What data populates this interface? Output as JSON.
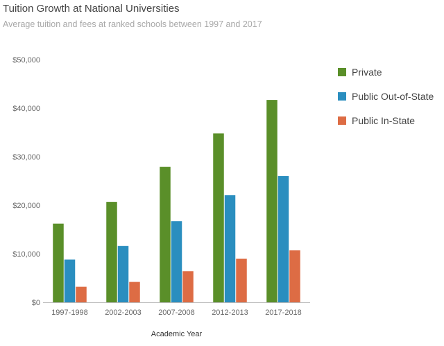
{
  "chart_data": {
    "type": "bar",
    "title": "Tuition Growth at National Universities",
    "subtitle": "Average tuition and fees at ranked schools between 1997 and 2017",
    "xlabel": "Academic Year",
    "ylabel": "",
    "ylim": [
      0,
      50000
    ],
    "yticks": [
      "$0",
      "$10,000",
      "$20,000",
      "$30,000",
      "$40,000",
      "$50,000"
    ],
    "ytick_values": [
      0,
      10000,
      20000,
      30000,
      40000,
      50000
    ],
    "grid": false,
    "legend_position": "right",
    "categories": [
      "1997-1998",
      "2002-2003",
      "2007-2008",
      "2012-2013",
      "2017-2018"
    ],
    "series": [
      {
        "name": "Private",
        "color": "#5a8f29",
        "values": [
          16200,
          20700,
          27900,
          34800,
          41700
        ]
      },
      {
        "name": "Public Out-of-State",
        "color": "#2a8ebf",
        "values": [
          8800,
          11600,
          16700,
          22100,
          26000
        ]
      },
      {
        "name": "Public In-State",
        "color": "#dd6c44",
        "values": [
          3200,
          4200,
          6400,
          9000,
          10700
        ]
      }
    ]
  }
}
